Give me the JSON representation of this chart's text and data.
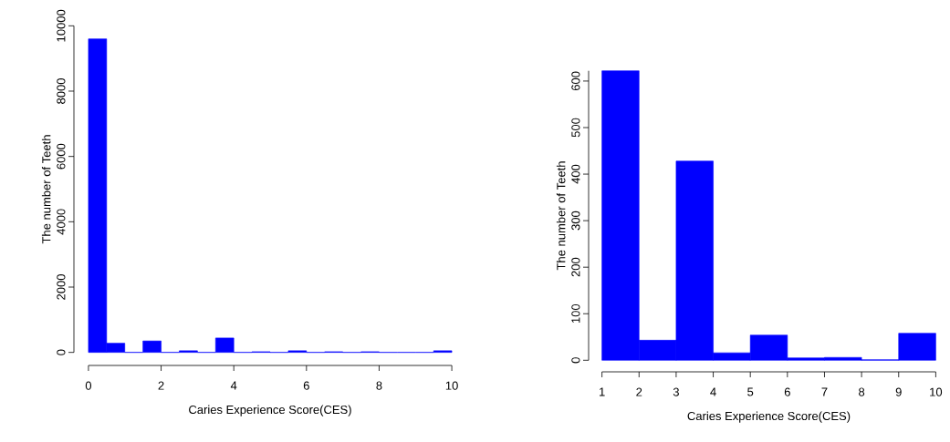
{
  "chart_data": [
    {
      "type": "histogram",
      "xlabel": "Caries Experience Score(CES)",
      "ylabel": "The number of Teeth",
      "color": "#0000ff",
      "bins": [
        0,
        0.5,
        1,
        1.5,
        2,
        2.5,
        3,
        3.5,
        4,
        4.5,
        5,
        5.5,
        6,
        6.5,
        7,
        7.5,
        8,
        8.5,
        9,
        9.5,
        10
      ],
      "values": [
        9600,
        280,
        0,
        350,
        0,
        50,
        0,
        440,
        0,
        20,
        0,
        50,
        0,
        20,
        0,
        20,
        0,
        0,
        0,
        50
      ],
      "xlim": [
        0,
        10
      ],
      "ylim": [
        0,
        10000
      ],
      "xticks": [
        0,
        2,
        4,
        6,
        8,
        10
      ],
      "yticks": [
        0,
        2000,
        4000,
        6000,
        8000,
        10000
      ]
    },
    {
      "type": "histogram",
      "xlabel": "Caries Experience Score(CES)",
      "ylabel": "The number of Teeth",
      "color": "#0000ff",
      "bins": [
        1,
        2,
        3,
        4,
        5,
        6,
        7,
        8,
        9,
        10
      ],
      "values": [
        622,
        43,
        428,
        16,
        54,
        5,
        6,
        1,
        58
      ],
      "xlim": [
        1,
        10
      ],
      "ylim": [
        0,
        622
      ],
      "xticks": [
        1,
        2,
        3,
        4,
        5,
        6,
        7,
        8,
        9,
        10
      ],
      "yticks": [
        0,
        100,
        200,
        300,
        400,
        500,
        600
      ]
    }
  ]
}
